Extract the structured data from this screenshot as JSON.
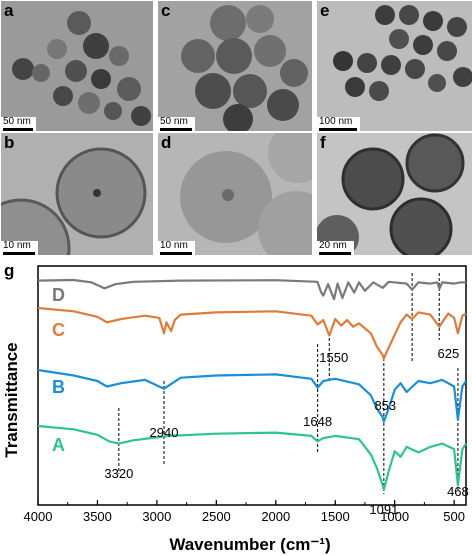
{
  "panels": [
    {
      "letter": "a",
      "scale": "50 nm"
    },
    {
      "letter": "b",
      "scale": "10 nm"
    },
    {
      "letter": "c",
      "scale": "50 nm"
    },
    {
      "letter": "d",
      "scale": "10 nm"
    },
    {
      "letter": "e",
      "scale": "100 nm"
    },
    {
      "letter": "f",
      "scale": "20 nm"
    }
  ],
  "chart_data": {
    "type": "line",
    "panel_letter": "g",
    "xlabel": "Wavenumber (cm⁻¹)",
    "ylabel": "Transmittance",
    "xlim": [
      4000,
      400
    ],
    "x_reversed": true,
    "xticks": [
      "4000",
      "3500",
      "3000",
      "2500",
      "2000",
      "1500",
      "1000",
      "500"
    ],
    "grid": false,
    "series": [
      {
        "name": "D",
        "color": "#7a7a7a",
        "x": [
          4000,
          3700,
          3550,
          3440,
          3350,
          3200,
          2800,
          2000,
          1650,
          1620,
          1600,
          1560,
          1510,
          1480,
          1440,
          1390,
          1340,
          1300,
          1250,
          1180,
          1100,
          1050,
          900,
          853,
          800,
          700,
          640,
          625,
          600,
          500,
          450,
          400
        ],
        "y": [
          0.985,
          0.99,
          0.97,
          0.92,
          0.955,
          0.975,
          0.985,
          0.988,
          0.975,
          0.89,
          0.86,
          0.955,
          0.83,
          0.96,
          0.84,
          0.97,
          0.885,
          0.97,
          0.9,
          0.97,
          0.925,
          0.975,
          0.96,
          0.91,
          0.97,
          0.96,
          0.97,
          0.915,
          0.97,
          0.96,
          0.97,
          0.97
        ]
      },
      {
        "name": "C",
        "color": "#e07b39",
        "x": [
          4000,
          3700,
          3500,
          3420,
          3300,
          3100,
          2980,
          2940,
          2920,
          2880,
          2850,
          2800,
          2500,
          2000,
          1700,
          1648,
          1600,
          1550,
          1500,
          1450,
          1400,
          1350,
          1300,
          1200,
          1150,
          1100,
          1091,
          1050,
          950,
          900,
          853,
          800,
          700,
          625,
          550,
          500,
          468,
          430,
          400
        ],
        "y": [
          0.83,
          0.8,
          0.75,
          0.7,
          0.73,
          0.76,
          0.74,
          0.6,
          0.7,
          0.62,
          0.72,
          0.77,
          0.79,
          0.8,
          0.76,
          0.68,
          0.72,
          0.58,
          0.73,
          0.67,
          0.72,
          0.66,
          0.69,
          0.6,
          0.48,
          0.4,
          0.37,
          0.47,
          0.7,
          0.77,
          0.73,
          0.79,
          0.77,
          0.66,
          0.78,
          0.74,
          0.6,
          0.76,
          0.78
        ]
      },
      {
        "name": "B",
        "color": "#1a8fd6",
        "x": [
          4000,
          3700,
          3500,
          3420,
          3300,
          3100,
          2940,
          2800,
          2500,
          2000,
          1700,
          1648,
          1600,
          1500,
          1300,
          1200,
          1150,
          1100,
          1091,
          1050,
          1000,
          950,
          900,
          800,
          700,
          600,
          500,
          468,
          430,
          400
        ],
        "y": [
          0.55,
          0.5,
          0.45,
          0.4,
          0.43,
          0.46,
          0.38,
          0.48,
          0.5,
          0.51,
          0.47,
          0.39,
          0.45,
          0.47,
          0.42,
          0.32,
          0.2,
          0.12,
          0.08,
          0.2,
          0.37,
          0.43,
          0.35,
          0.45,
          0.43,
          0.46,
          0.4,
          0.1,
          0.4,
          0.45
        ]
      },
      {
        "name": "A",
        "color": "#2dc48f",
        "x": [
          4000,
          3700,
          3500,
          3400,
          3320,
          3200,
          2900,
          2500,
          2000,
          1700,
          1648,
          1600,
          1500,
          1300,
          1200,
          1150,
          1100,
          1091,
          1050,
          1000,
          950,
          900,
          800,
          700,
          600,
          500,
          468,
          430,
          400
        ],
        "y": [
          0.26,
          0.23,
          0.18,
          0.12,
          0.1,
          0.13,
          0.17,
          0.19,
          0.2,
          0.17,
          0.12,
          0.15,
          0.17,
          0.14,
          0.0,
          -0.12,
          -0.28,
          -0.32,
          -0.15,
          0.03,
          -0.02,
          0.07,
          0.02,
          0.07,
          0.1,
          0.05,
          -0.28,
          0.05,
          0.1
        ]
      }
    ],
    "annotations": [
      {
        "label": "3320",
        "x": 3320
      },
      {
        "label": "2940",
        "x": 2940
      },
      {
        "label": "1648",
        "x": 1648
      },
      {
        "label": "1550",
        "x": 1550
      },
      {
        "label": "1091",
        "x": 1091
      },
      {
        "label": "853",
        "x": 853
      },
      {
        "label": "625",
        "x": 625
      },
      {
        "label": "468",
        "x": 468
      }
    ],
    "reference_lines_x": [
      3320,
      2940,
      1648,
      1550,
      1091,
      853,
      625,
      468
    ]
  }
}
